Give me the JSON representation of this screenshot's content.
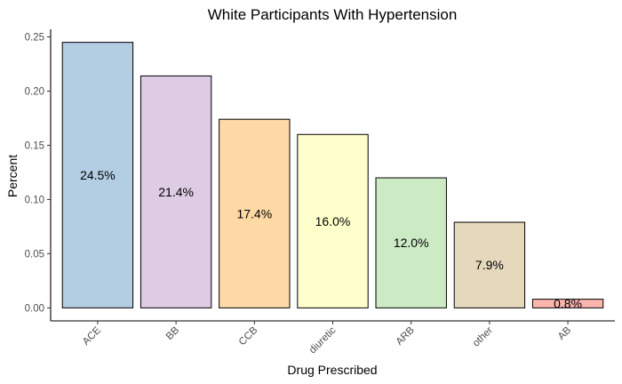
{
  "chart_data": {
    "type": "bar",
    "title": "White Participants With Hypertension",
    "xlabel": "Drug Prescribed",
    "ylabel": "Percent",
    "categories": [
      "ACE",
      "BB",
      "CCB",
      "diuretic",
      "ARB",
      "other",
      "AB"
    ],
    "values": [
      0.245,
      0.214,
      0.174,
      0.16,
      0.12,
      0.079,
      0.008
    ],
    "data_labels": [
      "24.5%",
      "21.4%",
      "17.4%",
      "16.0%",
      "12.0%",
      "7.9%",
      "0.8%"
    ],
    "colors": [
      "#b3cde3",
      "#decbe4",
      "#fed9a6",
      "#ffffcc",
      "#ccebc5",
      "#e5d8bd",
      "#fbb4ae"
    ],
    "ylim": [
      -0.012,
      0.257
    ],
    "yticks": [
      0.0,
      0.05,
      0.1,
      0.15,
      0.2,
      0.25
    ],
    "ytick_labels": [
      "0.00",
      "0.05",
      "0.10",
      "0.15",
      "0.20",
      "0.25"
    ],
    "grid": false,
    "legend": "none"
  }
}
